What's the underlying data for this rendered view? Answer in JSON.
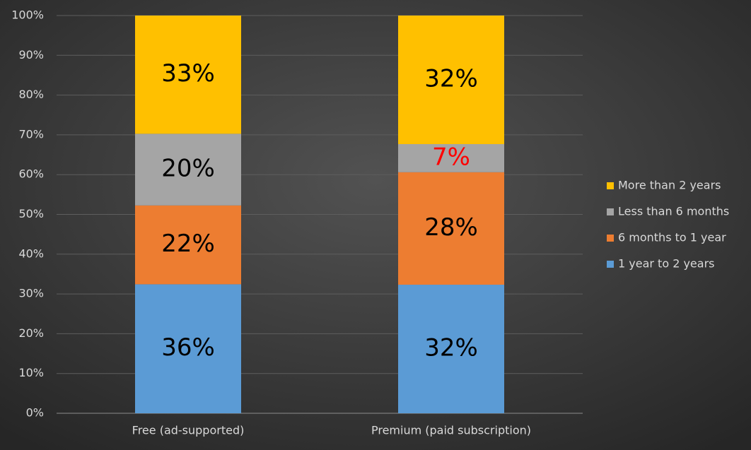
{
  "chart_data": {
    "type": "bar100stacked",
    "categories": [
      "Free (ad-supported)",
      "Premium (paid subscription)"
    ],
    "series": [
      {
        "name": "1 year to 2 years",
        "color": "#5b9bd5",
        "values": [
          36,
          32
        ],
        "value_labels": [
          "36%",
          "32%"
        ],
        "label_colors": [
          "#000000",
          "#000000"
        ]
      },
      {
        "name": "6 months to 1 year",
        "color": "#ed7d31",
        "values": [
          22,
          28
        ],
        "value_labels": [
          "22%",
          "28%"
        ],
        "label_colors": [
          "#000000",
          "#000000"
        ]
      },
      {
        "name": "Less than 6 months",
        "color": "#a5a5a5",
        "values": [
          20,
          7
        ],
        "value_labels": [
          "20%",
          "7%"
        ],
        "label_colors": [
          "#000000",
          "#ff0000"
        ]
      },
      {
        "name": "More than 2 years",
        "color": "#ffc000",
        "values": [
          33,
          32
        ],
        "value_labels": [
          "33%",
          "32%"
        ],
        "label_colors": [
          "#000000",
          "#000000"
        ]
      }
    ],
    "ylim": [
      0,
      100
    ],
    "yticks": [
      {
        "value": 0,
        "label": "0%"
      },
      {
        "value": 10,
        "label": "10%"
      },
      {
        "value": 20,
        "label": "20%"
      },
      {
        "value": 30,
        "label": "30%"
      },
      {
        "value": 40,
        "label": "40%"
      },
      {
        "value": 50,
        "label": "50%"
      },
      {
        "value": 60,
        "label": "60%"
      },
      {
        "value": 70,
        "label": "70%"
      },
      {
        "value": 80,
        "label": "80%"
      },
      {
        "value": 90,
        "label": "90%"
      },
      {
        "value": 100,
        "label": "100%"
      }
    ],
    "grid": true,
    "legend": "right"
  }
}
